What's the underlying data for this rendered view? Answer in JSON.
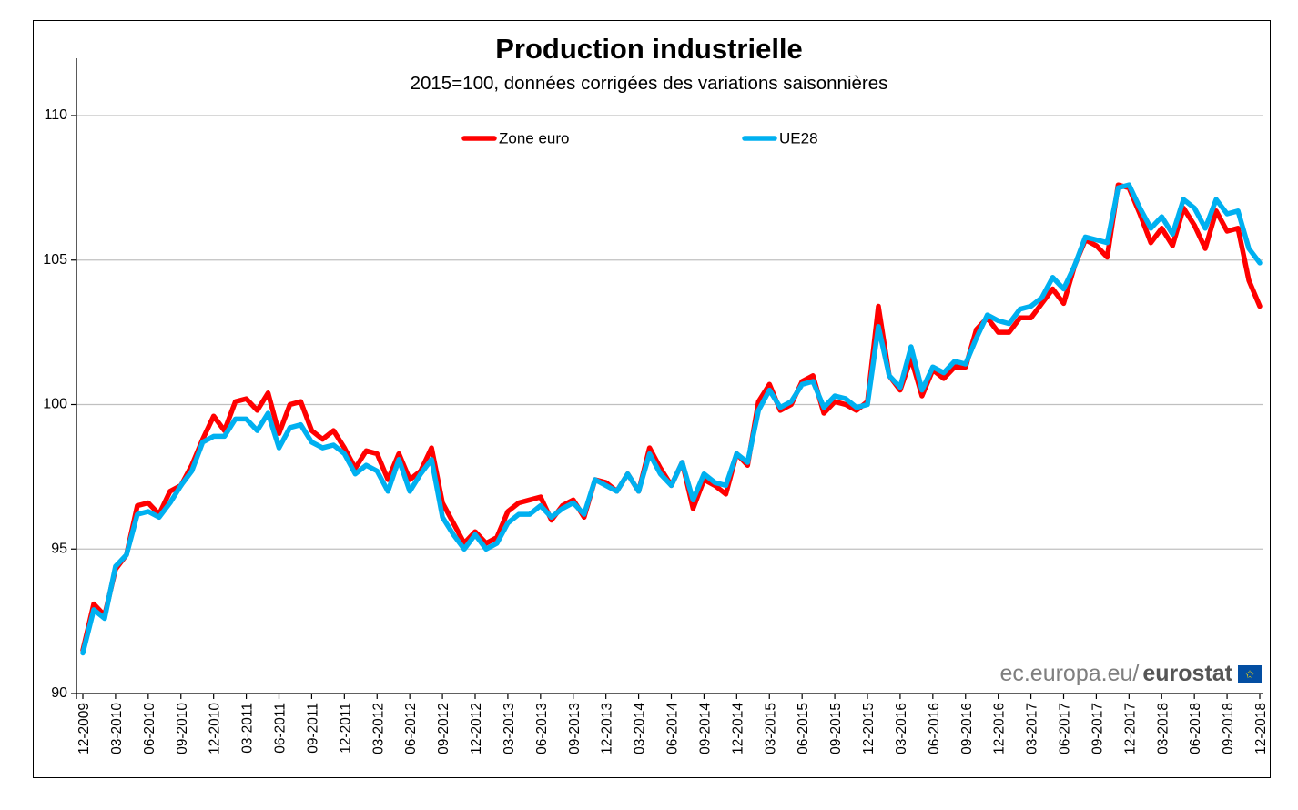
{
  "chart_data": {
    "type": "line",
    "title": "Production industrielle",
    "subtitle": "2015=100, données corrigées des variations saisonnières",
    "xlabel": "",
    "ylabel": "",
    "ylim": [
      90,
      110
    ],
    "yticks": [
      90,
      95,
      100,
      105,
      110
    ],
    "grid": true,
    "legend_position": "top-center",
    "x_tick_labels": [
      "12-2009",
      "03-2010",
      "06-2010",
      "09-2010",
      "12-2010",
      "03-2011",
      "06-2011",
      "09-2011",
      "12-2011",
      "03-2012",
      "06-2012",
      "09-2012",
      "12-2012",
      "03-2013",
      "06-2013",
      "09-2013",
      "12-2013",
      "03-2014",
      "06-2014",
      "09-2014",
      "12-2014",
      "03-2015",
      "06-2015",
      "09-2015",
      "12-2015",
      "03-2016",
      "06-2016",
      "09-2016",
      "12-2016",
      "03-2017",
      "06-2017",
      "09-2017",
      "12-2017",
      "03-2018",
      "06-2018",
      "09-2018",
      "12-2018"
    ],
    "x_start": "12-2009",
    "x_end": "12-2018",
    "frequency": "monthly",
    "series": [
      {
        "name": "Zone euro",
        "color": "#ff0000",
        "values": [
          91.5,
          93.1,
          92.7,
          94.3,
          94.8,
          96.5,
          96.6,
          96.2,
          97.0,
          97.2,
          97.9,
          98.8,
          99.6,
          99.1,
          100.1,
          100.2,
          99.8,
          100.4,
          99.0,
          100.0,
          100.1,
          99.1,
          98.8,
          99.1,
          98.5,
          97.8,
          98.4,
          98.3,
          97.4,
          98.3,
          97.4,
          97.7,
          98.5,
          96.6,
          95.9,
          95.2,
          95.6,
          95.2,
          95.4,
          96.3,
          96.6,
          96.7,
          96.8,
          96.0,
          96.5,
          96.7,
          96.1,
          97.4,
          97.3,
          97.0,
          97.6,
          97.0,
          98.5,
          97.8,
          97.2,
          98.0,
          96.4,
          97.4,
          97.2,
          96.9,
          98.3,
          97.9,
          100.1,
          100.7,
          99.8,
          100.0,
          100.8,
          101.0,
          99.7,
          100.1,
          100.0,
          99.8,
          100.1,
          103.4,
          101.0,
          100.5,
          101.6,
          100.3,
          101.2,
          100.9,
          101.3,
          101.3,
          102.6,
          103.0,
          102.5,
          102.5,
          103.0,
          103.0,
          103.5,
          104.0,
          103.5,
          104.8,
          105.7,
          105.5,
          105.1,
          107.6,
          107.5,
          106.6,
          105.6,
          106.1,
          105.5,
          106.8,
          106.2,
          105.4,
          106.7,
          106.0,
          106.1,
          104.3,
          103.4
        ]
      },
      {
        "name": "UE28",
        "color": "#00b0f0",
        "values": [
          91.4,
          92.9,
          92.6,
          94.4,
          94.8,
          96.2,
          96.3,
          96.1,
          96.6,
          97.2,
          97.7,
          98.7,
          98.9,
          98.9,
          99.5,
          99.5,
          99.1,
          99.7,
          98.5,
          99.2,
          99.3,
          98.7,
          98.5,
          98.6,
          98.3,
          97.6,
          97.9,
          97.7,
          97.0,
          98.1,
          97.0,
          97.6,
          98.1,
          96.1,
          95.5,
          95.0,
          95.5,
          95.0,
          95.2,
          95.9,
          96.2,
          96.2,
          96.5,
          96.1,
          96.4,
          96.6,
          96.2,
          97.4,
          97.2,
          97.0,
          97.6,
          97.0,
          98.3,
          97.6,
          97.2,
          98.0,
          96.7,
          97.6,
          97.3,
          97.2,
          98.3,
          98.0,
          99.8,
          100.5,
          99.9,
          100.1,
          100.7,
          100.8,
          99.9,
          100.3,
          100.2,
          99.9,
          100.0,
          102.7,
          101.0,
          100.6,
          102.0,
          100.5,
          101.3,
          101.1,
          101.5,
          101.4,
          102.3,
          103.1,
          102.9,
          102.8,
          103.3,
          103.4,
          103.7,
          104.4,
          104.0,
          104.8,
          105.8,
          105.7,
          105.6,
          107.5,
          107.6,
          106.8,
          106.1,
          106.5,
          105.9,
          107.1,
          106.8,
          106.1,
          107.1,
          106.6,
          106.7,
          105.4,
          104.9
        ]
      }
    ]
  },
  "source": {
    "prefix": "ec.europa.eu/",
    "brand": "eurostat",
    "flag_icon": "eu-flag"
  }
}
